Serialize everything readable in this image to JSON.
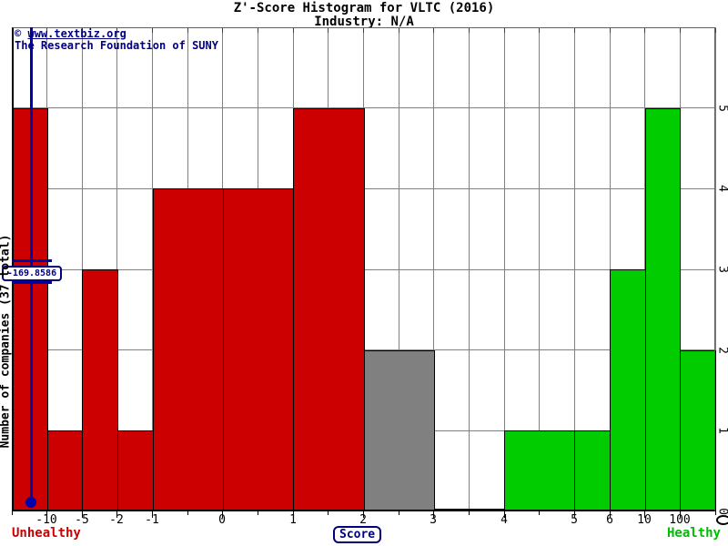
{
  "header": {
    "title": "Z'-Score Histogram for VLTC (2016)",
    "subtitle": "Industry: N/A"
  },
  "copyright": {
    "symbol": "©",
    "link": "www.textbiz.org",
    "org": "The Research Foundation of SUNY"
  },
  "chart_data": {
    "type": "bar",
    "title": "Z'-Score Histogram for VLTC (2016)",
    "subtitle": "Industry: N/A",
    "xlabel": "Score",
    "ylabel": "Number of companies (37 total)",
    "total_companies": 37,
    "ylim": [
      0,
      6
    ],
    "yticks": [
      0,
      1,
      2,
      3,
      4,
      5
    ],
    "x_grid_count": 20,
    "xticks": [
      {
        "grid": 1,
        "label": "-10"
      },
      {
        "grid": 2,
        "label": "-5"
      },
      {
        "grid": 3,
        "label": "-2"
      },
      {
        "grid": 4,
        "label": "-1"
      },
      {
        "grid": 6,
        "label": "0"
      },
      {
        "grid": 8,
        "label": "1"
      },
      {
        "grid": 10,
        "label": "2"
      },
      {
        "grid": 12,
        "label": "3"
      },
      {
        "grid": 14,
        "label": "4"
      },
      {
        "grid": 16,
        "label": "5"
      },
      {
        "grid": 17,
        "label": "6"
      },
      {
        "grid": 18,
        "label": "10"
      },
      {
        "grid": 19,
        "label": "100"
      }
    ],
    "bins": [
      {
        "range": "< -10",
        "grid": [
          0,
          1
        ],
        "count": 5,
        "status": "unhealthy"
      },
      {
        "range": "-10 to -5",
        "grid": [
          1,
          2
        ],
        "count": 1,
        "status": "unhealthy"
      },
      {
        "range": "-5 to -2",
        "grid": [
          2,
          3
        ],
        "count": 3,
        "status": "unhealthy"
      },
      {
        "range": "-2 to -1",
        "grid": [
          3,
          4
        ],
        "count": 1,
        "status": "unhealthy"
      },
      {
        "range": "-1 to 0",
        "grid": [
          4,
          6
        ],
        "count": 4,
        "status": "unhealthy"
      },
      {
        "range": "0 to 1",
        "grid": [
          6,
          8
        ],
        "count": 4,
        "status": "unhealthy"
      },
      {
        "range": "1 to 2",
        "grid": [
          8,
          10
        ],
        "count": 5,
        "status": "unhealthy"
      },
      {
        "range": "2 to 3",
        "grid": [
          10,
          12
        ],
        "count": 2,
        "status": "neutral"
      },
      {
        "range": "3 to 4",
        "grid": [
          12,
          14
        ],
        "count": 0,
        "status": "healthy"
      },
      {
        "range": "4 to 5",
        "grid": [
          14,
          16
        ],
        "count": 1,
        "status": "healthy"
      },
      {
        "range": "5 to 6",
        "grid": [
          16,
          17
        ],
        "count": 1,
        "status": "healthy"
      },
      {
        "range": "6 to 10",
        "grid": [
          17,
          18
        ],
        "count": 3,
        "status": "healthy"
      },
      {
        "range": "10 to 100",
        "grid": [
          18,
          19
        ],
        "count": 5,
        "status": "healthy"
      },
      {
        "range": "> 100",
        "grid": [
          19,
          20
        ],
        "count": 2,
        "status": "healthy"
      }
    ],
    "marker": {
      "label": "-169.8586",
      "value": -169.8586
    },
    "legend": {
      "left": "Unhealthy",
      "right": "Healthy"
    },
    "colors": {
      "unhealthy": "#CC0000",
      "neutral": "#808080",
      "healthy": "#00CC00",
      "marker": "#0000AA",
      "grid": "#808080",
      "label_navy": "#000080"
    },
    "layout": {
      "grid": "on",
      "y_axis_labels": "right-rotated",
      "x_axis_scale": "non-linear bins"
    }
  }
}
